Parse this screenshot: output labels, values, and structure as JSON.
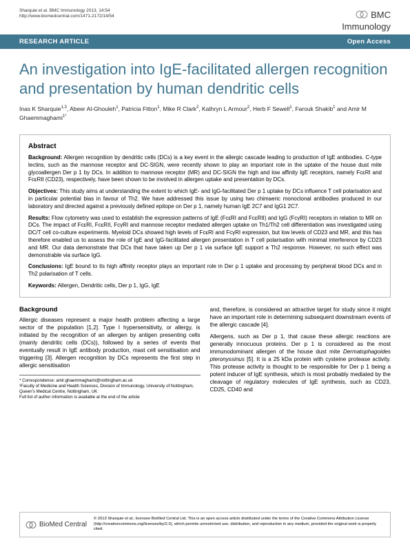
{
  "header": {
    "citation_line1": "Sharquie et al. BMC Immunology 2013, 14:54",
    "citation_line2": "http://www.biomedcentral.com/1471-2172/14/54",
    "journal_top": "BMC",
    "journal_bottom": "Immunology"
  },
  "bar": {
    "left": "RESEARCH ARTICLE",
    "right": "Open Access"
  },
  "title": "An investigation into IgE-facilitated allergen recognition and presentation by human dendritic cells",
  "authors_html": "Inas K Sharquie<sup>1,3</sup>, Abeer Al-Ghouleh<sup>1</sup>, Patricia Fitton<sup>1</sup>, Mike R Clark<sup>2</sup>, Kathryn L Armour<sup>2</sup>, Herb F Sewell<sup>1</sup>, Farouk Shakib<sup>1</sup> and Amir M Ghaemmaghami<sup>1*</sup>",
  "abstract": {
    "heading": "Abstract",
    "background_label": "Background:",
    "background": " Allergen recognition by dendritic cells (DCs) is a key event in the allergic cascade leading to production of IgE antibodies. C-type lectins, such as the mannose receptor and DC-SIGN, were recently shown to play an important role in the uptake of the house dust mite glycoallergen Der p 1 by DCs. In addition to mannose receptor (MR) and DC-SIGN the high and low affinity IgE receptors, namely FcεRI and FcεRII (CD23), respectively, have been shown to be involved in allergen uptake and presentation by DCs.",
    "objectives_label": "Objectives:",
    "objectives": " This study aims at understanding the extent to which IgE- and IgG-facilitated Der p 1 uptake by DCs influence T cell polarisation and in particular potential bias in favour of Th2. We have addressed this issue by using two chimaeric monoclonal antibodies produced in our laboratory and directed against a previously defined epitope on Der p 1, namely human IgE 2C7 and IgG1 2C7.",
    "results_label": "Results:",
    "results": " Flow cytometry was used to establish the expression patterns of IgE (FcεRI and FcεRII) and IgG (FcγRI) receptors in relation to MR on DCs. The impact of FcεRI, FcεRII, FcγRI and mannose receptor mediated allergen uptake on Th1/Th2 cell differentiation was investigated using DC/T cell co-culture experiments. Myeloid DCs showed high levels of FcεRI and FcγRI expression, but low levels of CD23 and MR, and this has therefore enabled us to assess the role of IgE and IgG-facilitated allergen presentation in T cell polarisation with minimal interference by CD23 and MR. Our data demonstrate that DCs that have taken up Der p 1 via surface IgE support a Th2 response. However, no such effect was demonstrable via surface IgG.",
    "conclusions_label": "Conclusions:",
    "conclusions": " IgE bound to its high affinity receptor plays an important role in Der p 1 uptake and processing by peripheral blood DCs and in Th2 polarisation of T cells.",
    "keywords_label": "Keywords:",
    "keywords": " Allergen, Dendritic cells, Der p 1, IgG, IgE"
  },
  "body": {
    "section_heading": "Background",
    "col1_p1": "Allergic diseases represent a major health problem affecting a large sector of the population [1,2]. Type I hypersensitivity, or allergy, is initiated by the recognition of an allergen by antigen presenting cells (mainly dendritic cells (DCs)), followed by a series of events that eventually result in IgE antibody production, mast cell sensitisation and triggering [3]. Allergen recognition by DCs represents the first step in allergic sensitisation",
    "col2_p1": "and, therefore, is considered an attractive target for study since it might have an important role in determining subsequent downstream events of the allergic cascade [4].",
    "col2_p2_a": "Allergens, such as Der p 1, that cause these allergic reactions are generally innocuous proteins. Der p 1 is considered as the most immunodominant allergen of the house dust mite ",
    "col2_p2_species": "Dermatophagoides pteronyssinus",
    "col2_p2_b": " [5]. It is a 25 kDa protein with cysteine protease activity. This protease activity is thought to be responsible for Der p 1 being a potent inducer of IgE synthesis, which is most probably mediated by the cleavage of regulatory molecules of IgE synthesis, such as CD23, CD25, CD40 and"
  },
  "correspondence": {
    "line1": "* Correspondence: amir.ghaemmaghami@nottingham.ac.uk",
    "line2": "¹Faculty of Medicine and Health Sciences, Division of Immunology, University of Nottingham, Queen's Medical Centre, Nottingham, UK",
    "line3": "Full list of author information is available at the end of the article"
  },
  "footer": {
    "logo_text": "BioMed Central",
    "license": "© 2013 Sharquie et al.; licensee BioMed Central Ltd. This is an open access article distributed under the terms of the Creative Commons Attribution License (http://creativecommons.org/licenses/by/2.0), which permits unrestricted use, distribution, and reproduction in any medium, provided the original work is properly cited."
  },
  "colors": {
    "brand_blue": "#3f7690",
    "border_gray": "#bbbbbb"
  }
}
